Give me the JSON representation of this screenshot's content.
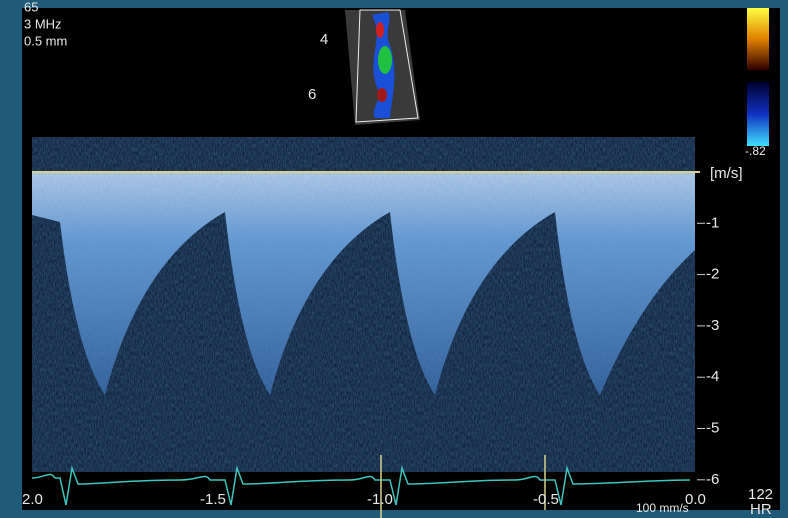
{
  "header": {
    "lines": [
      "65",
      "3 MHz",
      "0.5 mm"
    ]
  },
  "depth_labels": [
    "4",
    "6"
  ],
  "color_scale": {
    "min_label": "-.82"
  },
  "velocity_axis": {
    "unit": "[m/s]",
    "ticks": [
      "-1",
      "-2",
      "-3",
      "-4",
      "-5",
      "-6"
    ]
  },
  "time_axis": {
    "ticks": [
      "2.0",
      "-1.5",
      "-1.0",
      "-0.5",
      "0.0"
    ]
  },
  "sweep_speed": "100 mm/s",
  "heart_rate": {
    "value": "122",
    "label": "HR"
  }
}
